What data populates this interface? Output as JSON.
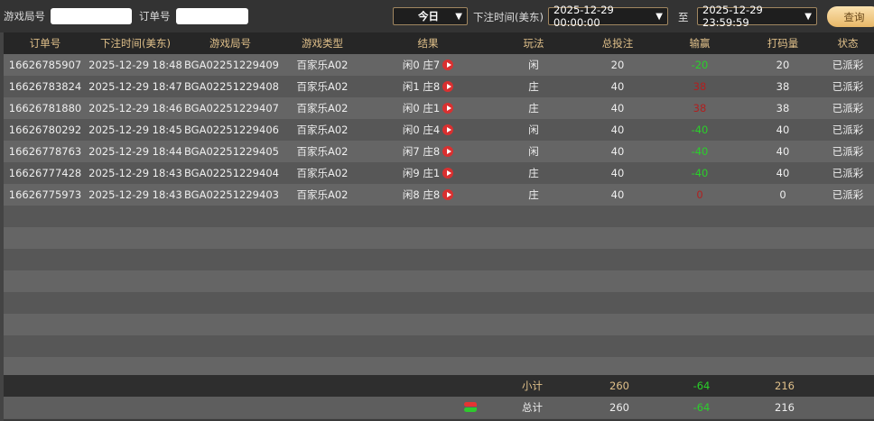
{
  "filters": {
    "game_round_label": "游戏局号",
    "game_round_value": "",
    "order_label": "订单号",
    "order_value": "",
    "period": "今日",
    "time_label": "下注时间(美东)",
    "start": "2025-12-29 00:00:00",
    "to_label": "至",
    "end": "2025-12-29 23:59:59",
    "query": "查询"
  },
  "headers": [
    "订单号",
    "下注时间(美东)",
    "游戏局号",
    "游戏类型",
    "结果",
    "玩法",
    "总投注",
    "输赢",
    "打码量",
    "状态"
  ],
  "rows": [
    [
      "16626785907",
      "2025-12-29 18:48",
      "BGA02251229409",
      "百家乐A02",
      "闲0 庄7",
      "闲",
      "20",
      "-20",
      "20",
      "已派彩"
    ],
    [
      "16626783824",
      "2025-12-29 18:47",
      "BGA02251229408",
      "百家乐A02",
      "闲1 庄8",
      "庄",
      "40",
      "38",
      "38",
      "已派彩"
    ],
    [
      "16626781880",
      "2025-12-29 18:46",
      "BGA02251229407",
      "百家乐A02",
      "闲0 庄1",
      "庄",
      "40",
      "38",
      "38",
      "已派彩"
    ],
    [
      "16626780292",
      "2025-12-29 18:45",
      "BGA02251229406",
      "百家乐A02",
      "闲0 庄4",
      "闲",
      "40",
      "-40",
      "40",
      "已派彩"
    ],
    [
      "16626778763",
      "2025-12-29 18:44",
      "BGA02251229405",
      "百家乐A02",
      "闲7 庄8",
      "闲",
      "40",
      "-40",
      "40",
      "已派彩"
    ],
    [
      "16626777428",
      "2025-12-29 18:43",
      "BGA02251229404",
      "百家乐A02",
      "闲9 庄1",
      "庄",
      "40",
      "-40",
      "40",
      "已派彩"
    ],
    [
      "16626775973",
      "2025-12-29 18:43",
      "BGA02251229403",
      "百家乐A02",
      "闲8 庄8",
      "庄",
      "40",
      "0",
      "0",
      "已派彩"
    ]
  ],
  "subtotal": {
    "label": "小计",
    "bet": "260",
    "winloss": "-64",
    "turnover": "216"
  },
  "total": {
    "label": "总计",
    "bet": "260",
    "winloss": "-64",
    "turnover": "216"
  },
  "colors": {
    "loss": "#2ad02a",
    "win": "#b02020",
    "accent": "#e0c08a"
  }
}
